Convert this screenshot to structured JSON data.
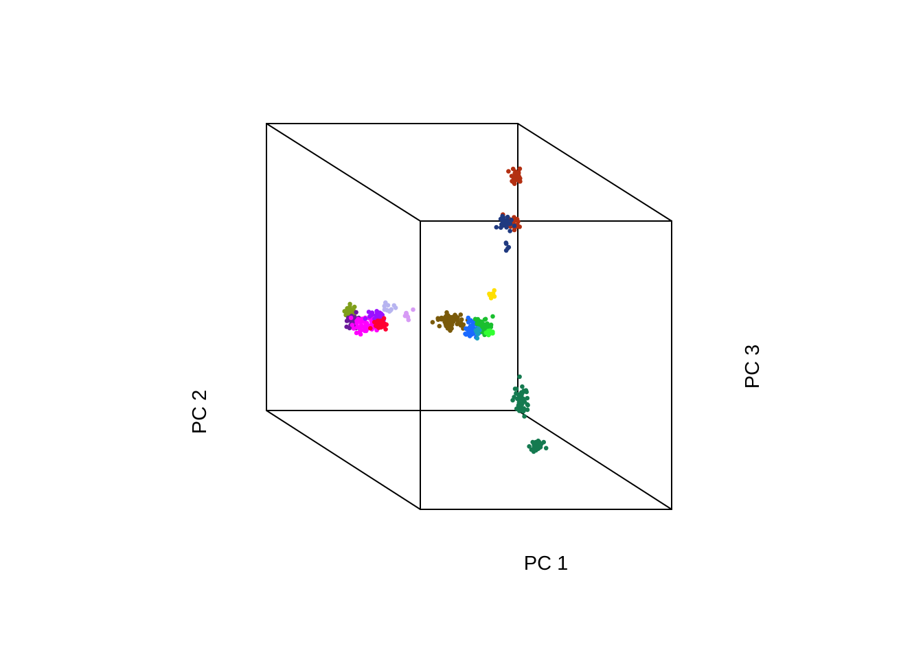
{
  "chart_data": {
    "type": "scatter",
    "projection": "3d-cube",
    "title": "",
    "xlabel": "PC 1",
    "ylabel": "PC 2",
    "zlabel": "PC 3",
    "grid": false,
    "legend": "none",
    "clusters": [
      {
        "color": "#7f9f1a",
        "center": [
          511,
          456
        ],
        "spread": [
          9,
          10
        ],
        "n": 30
      },
      {
        "color": "#6a1a9a",
        "center": [
          515,
          468
        ],
        "spread": [
          10,
          13
        ],
        "n": 25
      },
      {
        "color": "#ff00ff",
        "center": [
          532,
          472
        ],
        "spread": [
          22,
          12
        ],
        "n": 60
      },
      {
        "color": "#9b10ff",
        "center": [
          548,
          460
        ],
        "spread": [
          14,
          8
        ],
        "n": 30
      },
      {
        "color": "#ff0033",
        "center": [
          555,
          473
        ],
        "spread": [
          9,
          9
        ],
        "n": 35
      },
      {
        "color": "#b7b4f0",
        "center": [
          566,
          450
        ],
        "spread": [
          9,
          8
        ],
        "n": 12
      },
      {
        "color": "#d79bf5",
        "center": [
          592,
          458
        ],
        "spread": [
          7,
          7
        ],
        "n": 8
      },
      {
        "color": "#7a5a0a",
        "center": [
          656,
          468
        ],
        "spread": [
          18,
          12
        ],
        "n": 60
      },
      {
        "color": "#1a6aff",
        "center": [
          688,
          480
        ],
        "spread": [
          12,
          10
        ],
        "n": 45
      },
      {
        "color": "#1abf2f",
        "center": [
          704,
          475
        ],
        "spread": [
          12,
          11
        ],
        "n": 50
      },
      {
        "color": "#33ff33",
        "center": [
          714,
          485
        ],
        "spread": [
          6,
          6
        ],
        "n": 12
      },
      {
        "color": "#1aa0c0",
        "center": [
          696,
          483
        ],
        "spread": [
          5,
          6
        ],
        "n": 10
      },
      {
        "color": "#ffdf00",
        "center": [
          716,
          428
        ],
        "spread": [
          8,
          6
        ],
        "n": 7
      },
      {
        "color": "#b33012",
        "center": [
          751,
          255
        ],
        "spread": [
          8,
          12
        ],
        "n": 35
      },
      {
        "color": "#b33012",
        "center": [
          747,
          324
        ],
        "spread": [
          13,
          9
        ],
        "n": 30
      },
      {
        "color": "#203a80",
        "center": [
          737,
          325
        ],
        "spread": [
          10,
          12
        ],
        "n": 25
      },
      {
        "color": "#203a80",
        "center": [
          737,
          362
        ],
        "spread": [
          6,
          12
        ],
        "n": 5
      },
      {
        "color": "#157a50",
        "center": [
          760,
          585
        ],
        "spread": [
          12,
          18
        ],
        "n": 45
      },
      {
        "color": "#157a50",
        "center": [
          781,
          650
        ],
        "spread": [
          9,
          7
        ],
        "n": 40
      }
    ]
  }
}
